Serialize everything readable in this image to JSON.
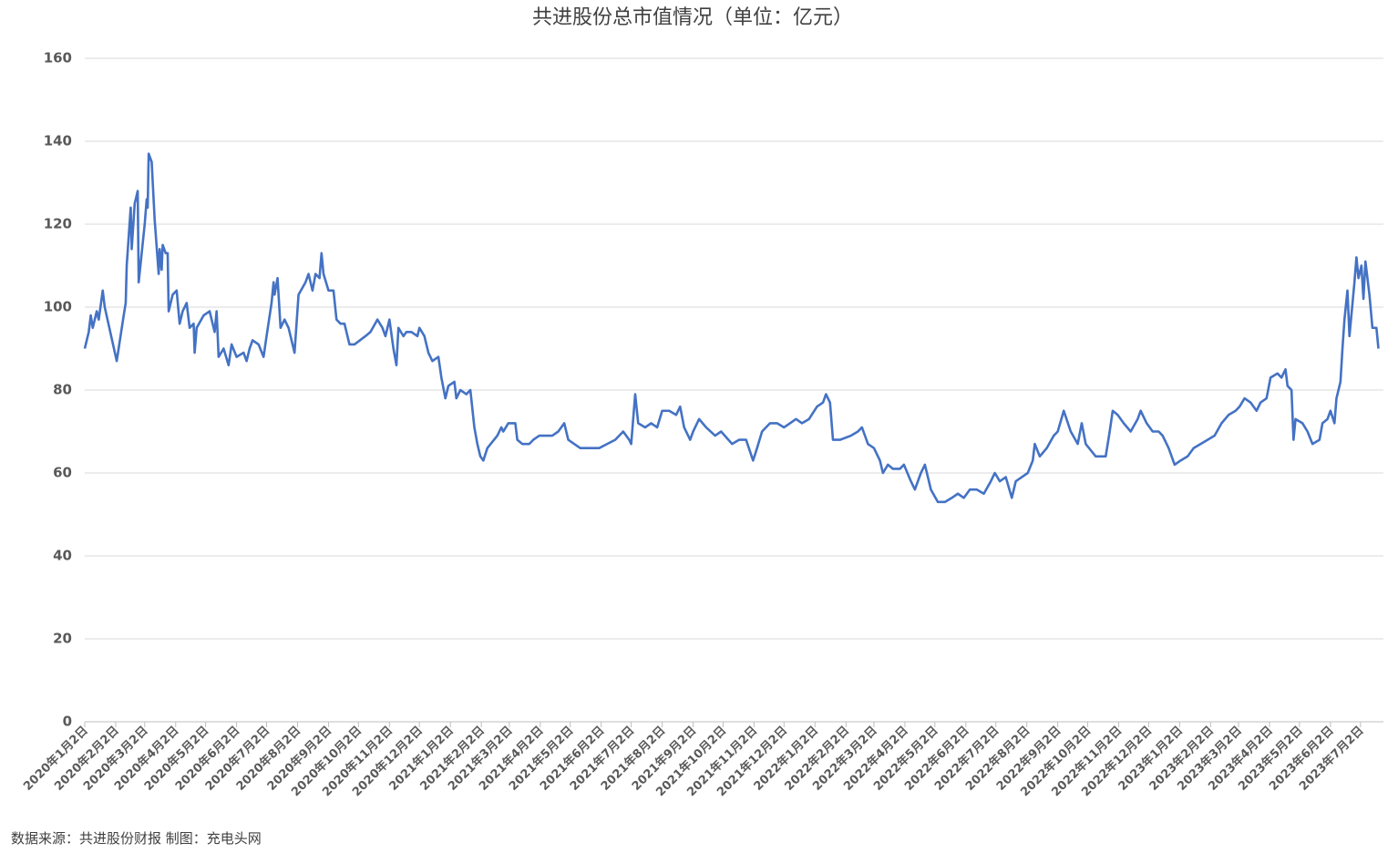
{
  "chart_data": {
    "type": "line",
    "title": "共进股份总市值情况（单位：亿元）",
    "source": "数据来源：共进股份财报  制图：充电头网",
    "grid": true,
    "xlim": [
      "2020-01-02",
      "2023-07-25"
    ],
    "ylim": [
      0,
      160
    ],
    "yticks": [
      0,
      20,
      40,
      60,
      80,
      100,
      120,
      140,
      160
    ],
    "xticks": [
      {
        "value": "2020-01-02",
        "label": "2020年1月2日"
      },
      {
        "value": "2020-02-02",
        "label": "2020年2月2日"
      },
      {
        "value": "2020-03-02",
        "label": "2020年3月2日"
      },
      {
        "value": "2020-04-02",
        "label": "2020年4月2日"
      },
      {
        "value": "2020-05-02",
        "label": "2020年5月2日"
      },
      {
        "value": "2020-06-02",
        "label": "2020年6月2日"
      },
      {
        "value": "2020-07-02",
        "label": "2020年7月2日"
      },
      {
        "value": "2020-08-02",
        "label": "2020年8月2日"
      },
      {
        "value": "2020-09-02",
        "label": "2020年9月2日"
      },
      {
        "value": "2020-10-02",
        "label": "2020年10月2日"
      },
      {
        "value": "2020-11-02",
        "label": "2020年11月2日"
      },
      {
        "value": "2020-12-02",
        "label": "2020年12月2日"
      },
      {
        "value": "2021-01-02",
        "label": "2021年1月2日"
      },
      {
        "value": "2021-02-02",
        "label": "2021年2月2日"
      },
      {
        "value": "2021-03-02",
        "label": "2021年3月2日"
      },
      {
        "value": "2021-04-02",
        "label": "2021年4月2日"
      },
      {
        "value": "2021-05-02",
        "label": "2021年5月2日"
      },
      {
        "value": "2021-06-02",
        "label": "2021年6月2日"
      },
      {
        "value": "2021-07-02",
        "label": "2021年7月2日"
      },
      {
        "value": "2021-08-02",
        "label": "2021年8月2日"
      },
      {
        "value": "2021-09-02",
        "label": "2021年9月2日"
      },
      {
        "value": "2021-10-02",
        "label": "2021年10月2日"
      },
      {
        "value": "2021-11-02",
        "label": "2021年11月2日"
      },
      {
        "value": "2021-12-02",
        "label": "2021年12月2日"
      },
      {
        "value": "2022-01-02",
        "label": "2022年1月2日"
      },
      {
        "value": "2022-02-02",
        "label": "2022年2月2日"
      },
      {
        "value": "2022-03-02",
        "label": "2022年3月2日"
      },
      {
        "value": "2022-04-02",
        "label": "2022年4月2日"
      },
      {
        "value": "2022-05-02",
        "label": "2022年5月2日"
      },
      {
        "value": "2022-06-02",
        "label": "2022年6月2日"
      },
      {
        "value": "2022-07-02",
        "label": "2022年7月2日"
      },
      {
        "value": "2022-08-02",
        "label": "2022年8月2日"
      },
      {
        "value": "2022-09-02",
        "label": "2022年9月2日"
      },
      {
        "value": "2022-10-02",
        "label": "2022年10月2日"
      },
      {
        "value": "2022-11-02",
        "label": "2022年11月2日"
      },
      {
        "value": "2022-12-02",
        "label": "2022年12月2日"
      },
      {
        "value": "2023-01-02",
        "label": "2023年1月2日"
      },
      {
        "value": "2023-02-02",
        "label": "2023年2月2日"
      },
      {
        "value": "2023-03-02",
        "label": "2023年3月2日"
      },
      {
        "value": "2023-04-02",
        "label": "2023年4月2日"
      },
      {
        "value": "2023-05-02",
        "label": "2023年5月2日"
      },
      {
        "value": "2023-06-02",
        "label": "2023年6月2日"
      },
      {
        "value": "2023-07-02",
        "label": "2023年7月2日"
      }
    ],
    "x": [
      "2020-01-02",
      "2020-01-06",
      "2020-01-08",
      "2020-01-10",
      "2020-01-14",
      "2020-01-16",
      "2020-01-20",
      "2020-01-22",
      "2020-02-03",
      "2020-02-10",
      "2020-02-12",
      "2020-02-13",
      "2020-02-17",
      "2020-02-18",
      "2020-02-21",
      "2020-02-24",
      "2020-02-25",
      "2020-03-02",
      "2020-03-04",
      "2020-03-05",
      "2020-03-06",
      "2020-03-09",
      "2020-03-12",
      "2020-03-16",
      "2020-03-17",
      "2020-03-19",
      "2020-03-20",
      "2020-03-23",
      "2020-03-25",
      "2020-03-26",
      "2020-03-30",
      "2020-04-03",
      "2020-04-06",
      "2020-04-09",
      "2020-04-13",
      "2020-04-16",
      "2020-04-20",
      "2020-04-21",
      "2020-04-23",
      "2020-04-30",
      "2020-05-06",
      "2020-05-11",
      "2020-05-13",
      "2020-05-15",
      "2020-05-20",
      "2020-05-25",
      "2020-05-28",
      "2020-06-02",
      "2020-06-09",
      "2020-06-12",
      "2020-06-15",
      "2020-06-18",
      "2020-06-24",
      "2020-06-29",
      "2020-07-02",
      "2020-07-07",
      "2020-07-09",
      "2020-07-10",
      "2020-07-13",
      "2020-07-16",
      "2020-07-20",
      "2020-07-24",
      "2020-07-28",
      "2020-07-30",
      "2020-08-03",
      "2020-08-10",
      "2020-08-13",
      "2020-08-17",
      "2020-08-20",
      "2020-08-24",
      "2020-08-26",
      "2020-08-28",
      "2020-09-02",
      "2020-09-07",
      "2020-09-10",
      "2020-09-14",
      "2020-09-18",
      "2020-09-23",
      "2020-09-28",
      "2020-10-09",
      "2020-10-14",
      "2020-10-21",
      "2020-10-26",
      "2020-10-29",
      "2020-11-02",
      "2020-11-06",
      "2020-11-09",
      "2020-11-11",
      "2020-11-16",
      "2020-11-19",
      "2020-11-24",
      "2020-11-30",
      "2020-12-02",
      "2020-12-07",
      "2020-12-11",
      "2020-12-15",
      "2020-12-21",
      "2020-12-24",
      "2020-12-28",
      "2020-12-31",
      "2021-01-06",
      "2021-01-08",
      "2021-01-12",
      "2021-01-18",
      "2021-01-22",
      "2021-01-26",
      "2021-01-29",
      "2021-02-01",
      "2021-02-04",
      "2021-02-08",
      "2021-02-18",
      "2021-02-22",
      "2021-02-24",
      "2021-03-01",
      "2021-03-08",
      "2021-03-10",
      "2021-03-15",
      "2021-03-22",
      "2021-03-26",
      "2021-04-01",
      "2021-04-08",
      "2021-04-14",
      "2021-04-20",
      "2021-04-26",
      "2021-04-30",
      "2021-05-06",
      "2021-05-12",
      "2021-05-20",
      "2021-05-31",
      "2021-06-08",
      "2021-06-16",
      "2021-06-24",
      "2021-06-30",
      "2021-07-02",
      "2021-07-06",
      "2021-07-09",
      "2021-07-16",
      "2021-07-22",
      "2021-07-28",
      "2021-08-02",
      "2021-08-09",
      "2021-08-16",
      "2021-08-20",
      "2021-08-24",
      "2021-08-30",
      "2021-09-02",
      "2021-09-08",
      "2021-09-15",
      "2021-09-24",
      "2021-09-30",
      "2021-10-11",
      "2021-10-18",
      "2021-10-25",
      "2021-11-01",
      "2021-11-05",
      "2021-11-10",
      "2021-11-18",
      "2021-11-25",
      "2021-12-02",
      "2021-12-08",
      "2021-12-14",
      "2021-12-20",
      "2021-12-27",
      "2022-01-04",
      "2022-01-10",
      "2022-01-13",
      "2022-01-17",
      "2022-01-20",
      "2022-01-27",
      "2022-02-07",
      "2022-02-14",
      "2022-02-18",
      "2022-02-24",
      "2022-03-02",
      "2022-03-08",
      "2022-03-11",
      "2022-03-16",
      "2022-03-21",
      "2022-03-28",
      "2022-04-01",
      "2022-04-08",
      "2022-04-12",
      "2022-04-18",
      "2022-04-22",
      "2022-04-26",
      "2022-04-28",
      "2022-05-05",
      "2022-05-12",
      "2022-05-19",
      "2022-05-25",
      "2022-05-31",
      "2022-06-06",
      "2022-06-13",
      "2022-06-20",
      "2022-06-27",
      "2022-07-01",
      "2022-07-06",
      "2022-07-12",
      "2022-07-18",
      "2022-07-22",
      "2022-07-28",
      "2022-08-03",
      "2022-08-08",
      "2022-08-10",
      "2022-08-15",
      "2022-08-22",
      "2022-08-29",
      "2022-09-02",
      "2022-09-08",
      "2022-09-15",
      "2022-09-22",
      "2022-09-26",
      "2022-09-30",
      "2022-10-10",
      "2022-10-20",
      "2022-10-24",
      "2022-10-27",
      "2022-11-01",
      "2022-11-07",
      "2022-11-14",
      "2022-11-21",
      "2022-11-24",
      "2022-11-30",
      "2022-12-06",
      "2022-12-12",
      "2022-12-16",
      "2022-12-22",
      "2022-12-28",
      "2023-01-03",
      "2023-01-10",
      "2023-01-16",
      "2023-01-30",
      "2023-02-06",
      "2023-02-13",
      "2023-02-20",
      "2023-02-27",
      "2023-03-03",
      "2023-03-08",
      "2023-03-14",
      "2023-03-20",
      "2023-03-24",
      "2023-03-30",
      "2023-04-03",
      "2023-04-10",
      "2023-04-14",
      "2023-04-18",
      "2023-04-20",
      "2023-04-24",
      "2023-04-26",
      "2023-04-28",
      "2023-05-05",
      "2023-05-10",
      "2023-05-15",
      "2023-05-22",
      "2023-05-25",
      "2023-05-30",
      "2023-06-02",
      "2023-06-06",
      "2023-06-08",
      "2023-06-12",
      "2023-06-14",
      "2023-06-16",
      "2023-06-19",
      "2023-06-21",
      "2023-06-26",
      "2023-06-28",
      "2023-06-30",
      "2023-07-03",
      "2023-07-05",
      "2023-07-07",
      "2023-07-11",
      "2023-07-14",
      "2023-07-18",
      "2023-07-20"
    ],
    "series": [
      {
        "name": "总市值",
        "color": "#4472c4",
        "values": [
          90,
          94,
          98,
          95,
          99,
          97,
          104,
          100,
          87,
          98,
          101,
          110,
          124,
          114,
          125,
          128,
          106,
          120,
          126,
          124,
          137,
          135,
          121,
          108,
          114,
          109,
          115,
          113,
          113,
          99,
          103,
          104,
          96,
          99,
          101,
          95,
          96,
          89,
          95,
          98,
          99,
          94,
          99,
          88,
          90,
          86,
          91,
          88,
          89,
          87,
          90,
          92,
          91,
          88,
          93,
          101,
          106,
          103,
          107,
          95,
          97,
          95,
          91,
          89,
          103,
          106,
          108,
          104,
          108,
          107,
          113,
          108,
          104,
          104,
          97,
          96,
          96,
          91,
          91,
          93,
          94,
          97,
          95,
          93,
          97,
          90,
          86,
          95,
          93,
          94,
          94,
          93,
          95,
          93,
          89,
          87,
          88,
          83,
          78,
          81,
          82,
          78,
          80,
          79,
          80,
          71,
          67,
          64,
          63,
          66,
          69,
          71,
          70,
          72,
          72,
          68,
          67,
          67,
          68,
          69,
          69,
          69,
          70,
          72,
          68,
          67,
          66,
          66,
          66,
          67,
          68,
          70,
          68,
          67,
          79,
          72,
          71,
          72,
          71,
          75,
          75,
          74,
          76,
          71,
          68,
          70,
          73,
          71,
          69,
          70,
          67,
          68,
          68,
          63,
          66,
          70,
          72,
          72,
          71,
          72,
          73,
          72,
          73,
          76,
          77,
          79,
          77,
          68,
          68,
          69,
          70,
          71,
          67,
          66,
          63,
          60,
          62,
          61,
          61,
          62,
          58,
          56,
          60,
          62,
          58,
          56,
          53,
          53,
          54,
          55,
          54,
          56,
          56,
          55,
          58,
          60,
          58,
          59,
          54,
          58,
          59,
          60,
          63,
          67,
          64,
          66,
          69,
          70,
          75,
          70,
          67,
          72,
          67,
          64,
          64,
          70,
          75,
          74,
          72,
          70,
          73,
          75,
          72,
          70,
          70,
          69,
          66,
          62,
          63,
          64,
          66,
          68,
          69,
          72,
          74,
          75,
          76,
          78,
          77,
          75,
          77,
          78,
          83,
          84,
          83,
          85,
          81,
          80,
          68,
          73,
          72,
          70,
          67,
          68,
          72,
          73,
          75,
          72,
          78,
          82,
          90,
          97,
          104,
          93,
          106,
          112,
          107,
          110,
          102,
          111,
          103,
          95,
          95,
          90
        ]
      }
    ]
  }
}
